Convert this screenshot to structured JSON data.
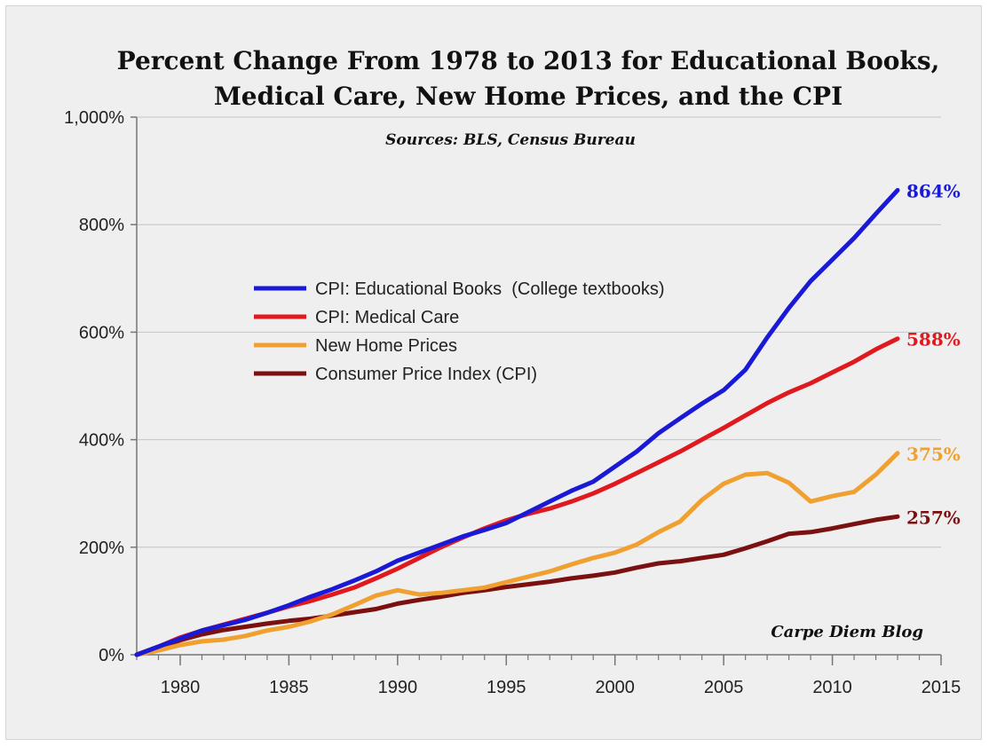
{
  "chart_data": {
    "type": "line",
    "title_line1": "Percent Change From 1978 to 2013 for Educational Books,",
    "title_line2": "Medical Care, New Home Prices, and the CPI",
    "subtitle": "Sources: BLS, Census Bureau",
    "credit": "Carpe Diem Blog",
    "xlim": [
      1978,
      2015
    ],
    "ylim": [
      0,
      1000
    ],
    "x_ticks": [
      1980,
      1985,
      1990,
      1995,
      2000,
      2005,
      2010,
      2015
    ],
    "x_tick_labels": [
      "1980",
      "1985",
      "1990",
      "1995",
      "2000",
      "2005",
      "2010",
      "2015"
    ],
    "y_ticks": [
      0,
      200,
      400,
      600,
      800,
      1000
    ],
    "y_tick_labels": [
      "0%",
      "200%",
      "400%",
      "600%",
      "800%",
      "1,000%"
    ],
    "grid": "horizontal",
    "legend_position": "upper-left",
    "x": [
      1978,
      1979,
      1980,
      1981,
      1982,
      1983,
      1984,
      1985,
      1986,
      1987,
      1988,
      1989,
      1990,
      1991,
      1992,
      1993,
      1994,
      1995,
      1996,
      1997,
      1998,
      1999,
      2000,
      2001,
      2002,
      2003,
      2004,
      2005,
      2006,
      2007,
      2008,
      2009,
      2010,
      2011,
      2012,
      2013
    ],
    "series": [
      {
        "name": "CPI: Educational Books  (College textbooks)",
        "color": "#1a1ad6",
        "end_label": "864%",
        "values": [
          0,
          15,
          30,
          45,
          55,
          65,
          78,
          92,
          108,
          122,
          138,
          155,
          175,
          190,
          205,
          220,
          232,
          245,
          265,
          285,
          305,
          322,
          350,
          378,
          412,
          440,
          467,
          492,
          530,
          590,
          645,
          695,
          735,
          775,
          820,
          864
        ]
      },
      {
        "name": "CPI: Medical Care",
        "color": "#e0191f",
        "end_label": "588%",
        "values": [
          0,
          15,
          32,
          45,
          56,
          67,
          78,
          90,
          100,
          112,
          125,
          142,
          160,
          180,
          200,
          218,
          235,
          250,
          262,
          272,
          285,
          300,
          318,
          338,
          358,
          378,
          400,
          422,
          445,
          468,
          488,
          505,
          525,
          545,
          568,
          588
        ]
      },
      {
        "name": "New Home Prices",
        "color": "#f0a030",
        "end_label": "375%",
        "values": [
          0,
          8,
          18,
          25,
          28,
          35,
          45,
          52,
          62,
          75,
          92,
          110,
          120,
          112,
          115,
          120,
          125,
          135,
          145,
          155,
          168,
          180,
          190,
          205,
          228,
          248,
          288,
          318,
          335,
          338,
          320,
          285,
          295,
          303,
          335,
          375
        ]
      },
      {
        "name": "Consumer Price Index (CPI)",
        "color": "#7a1010",
        "end_label": "257%",
        "values": [
          0,
          13,
          27,
          38,
          46,
          52,
          58,
          63,
          67,
          73,
          79,
          85,
          95,
          102,
          108,
          115,
          120,
          126,
          131,
          136,
          142,
          147,
          153,
          162,
          170,
          174,
          180,
          186,
          198,
          211,
          225,
          228,
          235,
          243,
          251,
          257
        ]
      }
    ]
  }
}
